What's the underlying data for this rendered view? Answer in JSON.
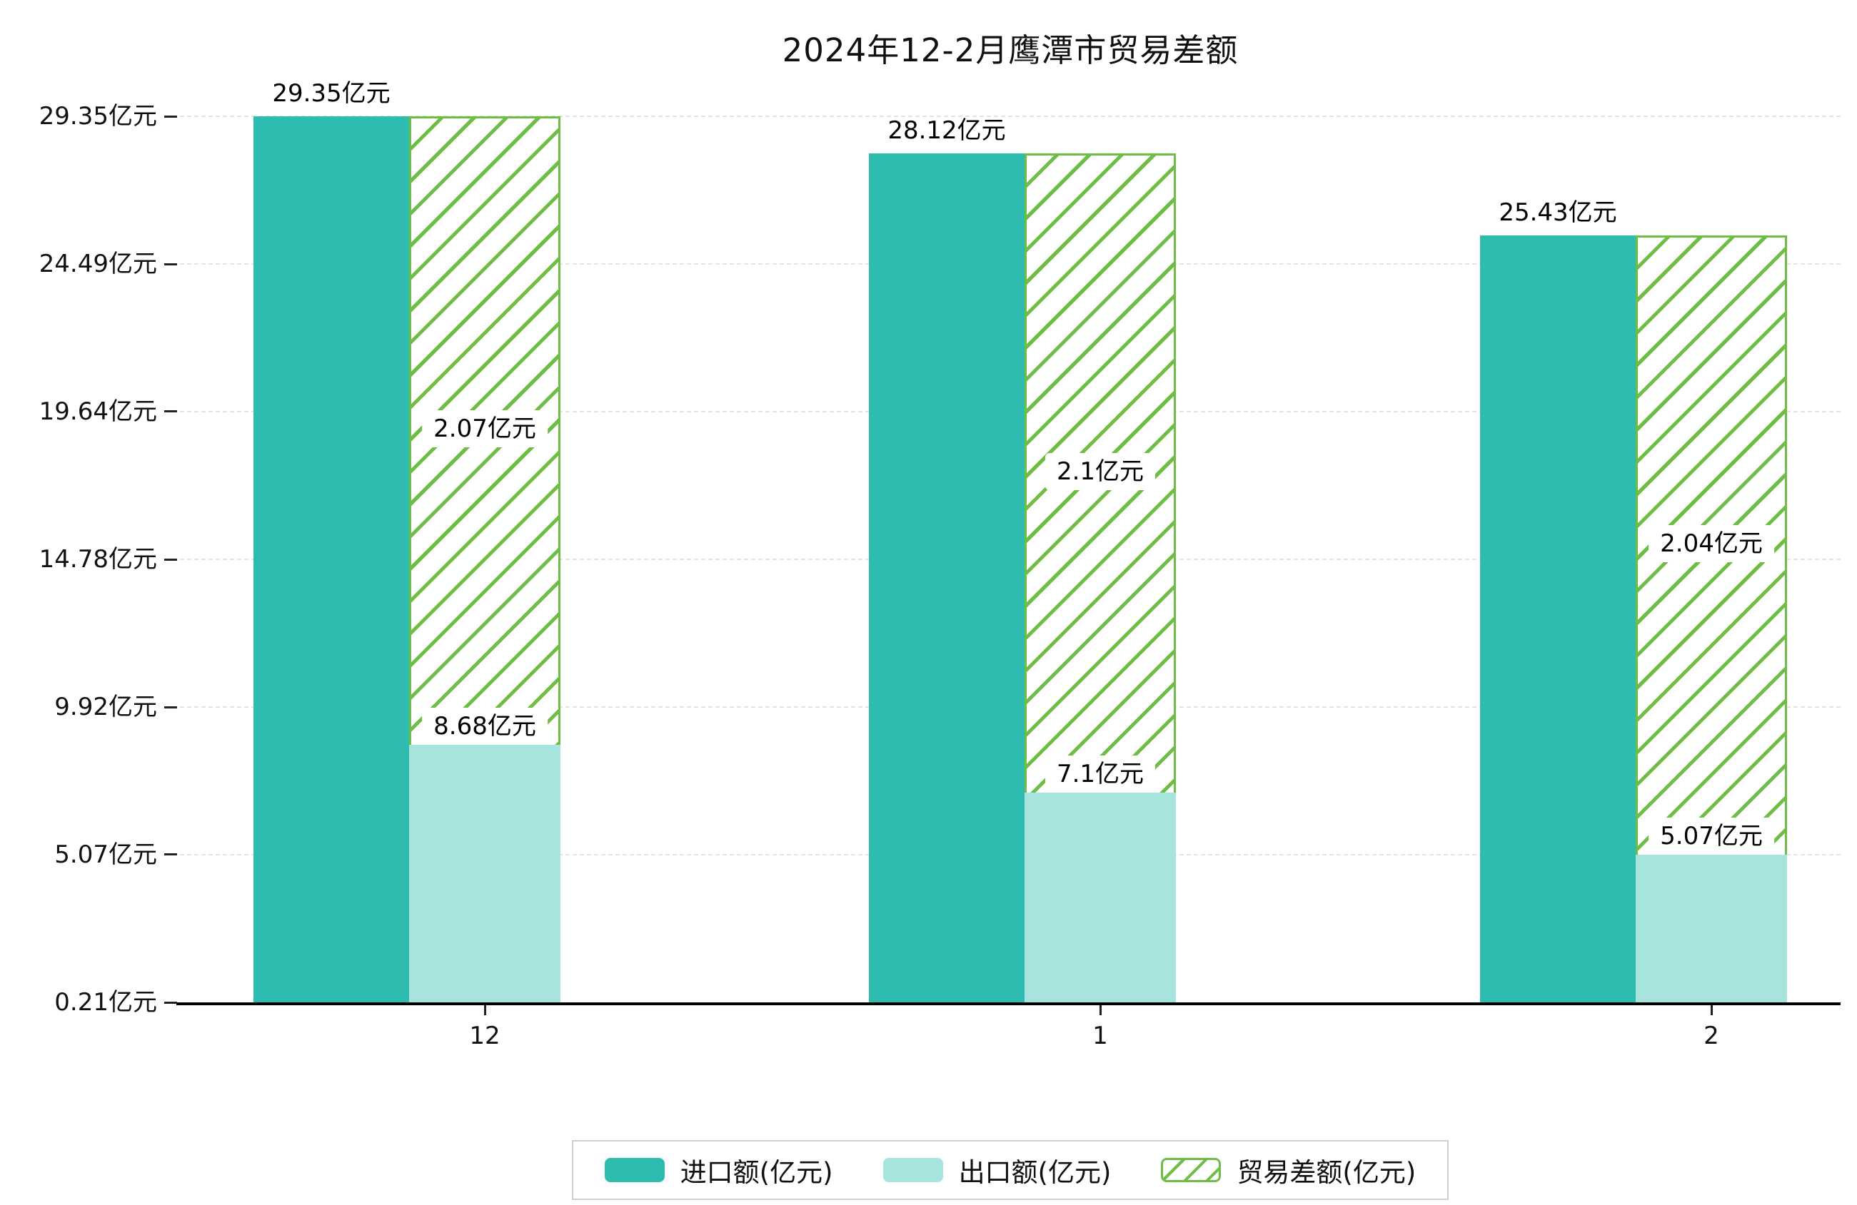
{
  "title": "2024年12-2月鹰潭市贸易差额",
  "chart_data": {
    "type": "bar",
    "title": "2024年12-2月鹰潭市贸易差额",
    "categories": [
      "12",
      "1",
      "2"
    ],
    "unit": "亿元",
    "series": [
      {
        "name": "进口额(亿元)",
        "values": [
          29.35,
          28.12,
          25.43
        ],
        "data_labels": [
          "29.35亿元",
          "28.12亿元",
          "25.43亿元"
        ],
        "color": "#2ebcb1",
        "pattern": "solid"
      },
      {
        "name": "出口额(亿元)",
        "values": [
          8.68,
          7.1,
          5.07
        ],
        "data_labels": [
          "8.68亿元",
          "7.1亿元",
          "5.07亿元"
        ],
        "color": "#a7e4dd",
        "pattern": "solid"
      },
      {
        "name": "贸易差额(亿元)",
        "values": [
          2.07,
          2.1,
          2.04
        ],
        "data_labels": [
          "2.07亿元",
          "2.1亿元",
          "2.04亿元"
        ],
        "color": "#6ebe45",
        "pattern": "diagonal-hatch",
        "note": "hatched bar drawn from baseline up to import total; lower part covered by export bar, label centered in visible hatched segment"
      }
    ],
    "y_axis": {
      "tick_labels": [
        "29.35亿元",
        "24.49亿元",
        "19.64亿元",
        "14.78亿元",
        "9.92亿元",
        "5.07亿元",
        "0.21亿元"
      ],
      "tick_values": [
        29.35,
        24.49,
        19.64,
        14.78,
        9.92,
        5.07,
        0.21
      ],
      "min": 0.21,
      "max": 29.35
    },
    "x_axis": {
      "tick_labels": [
        "12",
        "1",
        "2"
      ]
    },
    "legend": {
      "position": "bottom",
      "items": [
        {
          "label": "进口额(亿元)",
          "color": "#2ebcb1",
          "pattern": "solid"
        },
        {
          "label": "出口额(亿元)",
          "color": "#a7e4dd",
          "pattern": "solid"
        },
        {
          "label": "贸易差额(亿元)",
          "color": "#6ebe45",
          "pattern": "diagonal-hatch"
        }
      ]
    },
    "grid": {
      "horizontal": true,
      "style": "dashed",
      "color": "#e3e3e3"
    }
  },
  "colors": {
    "background": "#ffffff",
    "import_bar": "#2ebcb1",
    "export_bar": "#a7e4dd",
    "balance_hatch": "#6ebe45",
    "axis": "#000000",
    "text": "#111111"
  }
}
